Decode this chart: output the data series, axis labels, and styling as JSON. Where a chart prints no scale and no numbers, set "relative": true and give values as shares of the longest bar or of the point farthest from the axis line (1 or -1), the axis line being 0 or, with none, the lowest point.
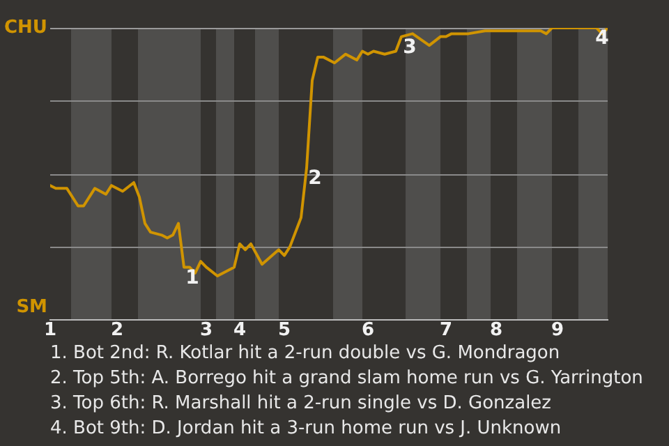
{
  "chart_data": {
    "type": "line",
    "categories": [
      "1",
      null,
      null,
      null,
      null,
      null,
      null,
      null,
      null,
      null,
      null,
      null,
      "2",
      null,
      null,
      null,
      null,
      null,
      null,
      null,
      null,
      null,
      null,
      null,
      null,
      null,
      null,
      null,
      "3",
      null,
      null,
      null,
      null,
      null,
      "4",
      null,
      null,
      null,
      null,
      null,
      null,
      null,
      "5",
      null,
      null,
      null,
      null,
      null,
      null,
      null,
      null,
      null,
      null,
      null,
      null,
      null,
      null,
      "6",
      null,
      null,
      null,
      null,
      null,
      null,
      null,
      null,
      null,
      null,
      null,
      null,
      null,
      "7",
      null,
      null,
      null,
      null,
      null,
      null,
      null,
      null,
      "8",
      null,
      null,
      null,
      null,
      null,
      null,
      null,
      null,
      null,
      null,
      "9",
      null,
      null,
      null,
      null,
      null,
      null,
      null,
      null,
      null
    ],
    "series": [
      {
        "color": "#d09400",
        "values": [
          0.46,
          0.45,
          null,
          0.45,
          null,
          0.39,
          0.39,
          null,
          0.45,
          null,
          0.43,
          0.46,
          null,
          0.44,
          null,
          0.47,
          0.42,
          0.33,
          0.3,
          null,
          0.29,
          0.28,
          0.29,
          0.33,
          0.18,
          0.18,
          0.16,
          0.2,
          0.18,
          null,
          0.15,
          null,
          null,
          0.18,
          0.26,
          0.24,
          0.26,
          null,
          0.19,
          null,
          null,
          0.24,
          0.22,
          0.25,
          null,
          0.35,
          0.52,
          0.82,
          0.9,
          0.9,
          null,
          0.88,
          null,
          0.91,
          null,
          0.89,
          0.92,
          0.91,
          0.92,
          null,
          0.91,
          null,
          0.92,
          0.97,
          null,
          0.98,
          null,
          null,
          0.94,
          null,
          0.97,
          0.97,
          0.98,
          null,
          null,
          0.98,
          null,
          null,
          0.99,
          0.99,
          null,
          null,
          null,
          null,
          0.99,
          0.99,
          null,
          null,
          0.99,
          0.98,
          1,
          null,
          null,
          null,
          null,
          1,
          null,
          null,
          1,
          0.98,
          1
        ]
      }
    ],
    "relative": true,
    "marker": "none",
    "legend": false,
    "ref_lines": [
      {
        "axis": "y",
        "value": 1,
        "label": "CHU",
        "color": "#9a9a9a"
      },
      {
        "axis": "y",
        "value": 0.75,
        "color": "#8a8a8a"
      },
      {
        "axis": "y",
        "value": 0.5,
        "color": "#8a8a8a"
      },
      {
        "axis": "y",
        "value": 0.25,
        "color": "#8a8a8a"
      }
    ],
    "ylabel": "SM",
    "annotations": [
      {
        "text": "1",
        "y": 0.18
      },
      {
        "text": "2",
        "y": 0.52
      },
      {
        "text": "3",
        "y": 0.97
      },
      {
        "text": "4",
        "y": 1
      },
      "1. Bot 2nd: R. Kotlar hit a 2-run double vs G. Mondragon",
      "2. Top 5th: A. Borrego hit a grand slam home run vs G. Yarrington",
      "3. Top 6th: R. Marshall hit a 2-run single vs D. Gonzalez",
      "4. Bot 9th: D. Jordan hit a 3-run home run vs J. Unknown"
    ]
  }
}
